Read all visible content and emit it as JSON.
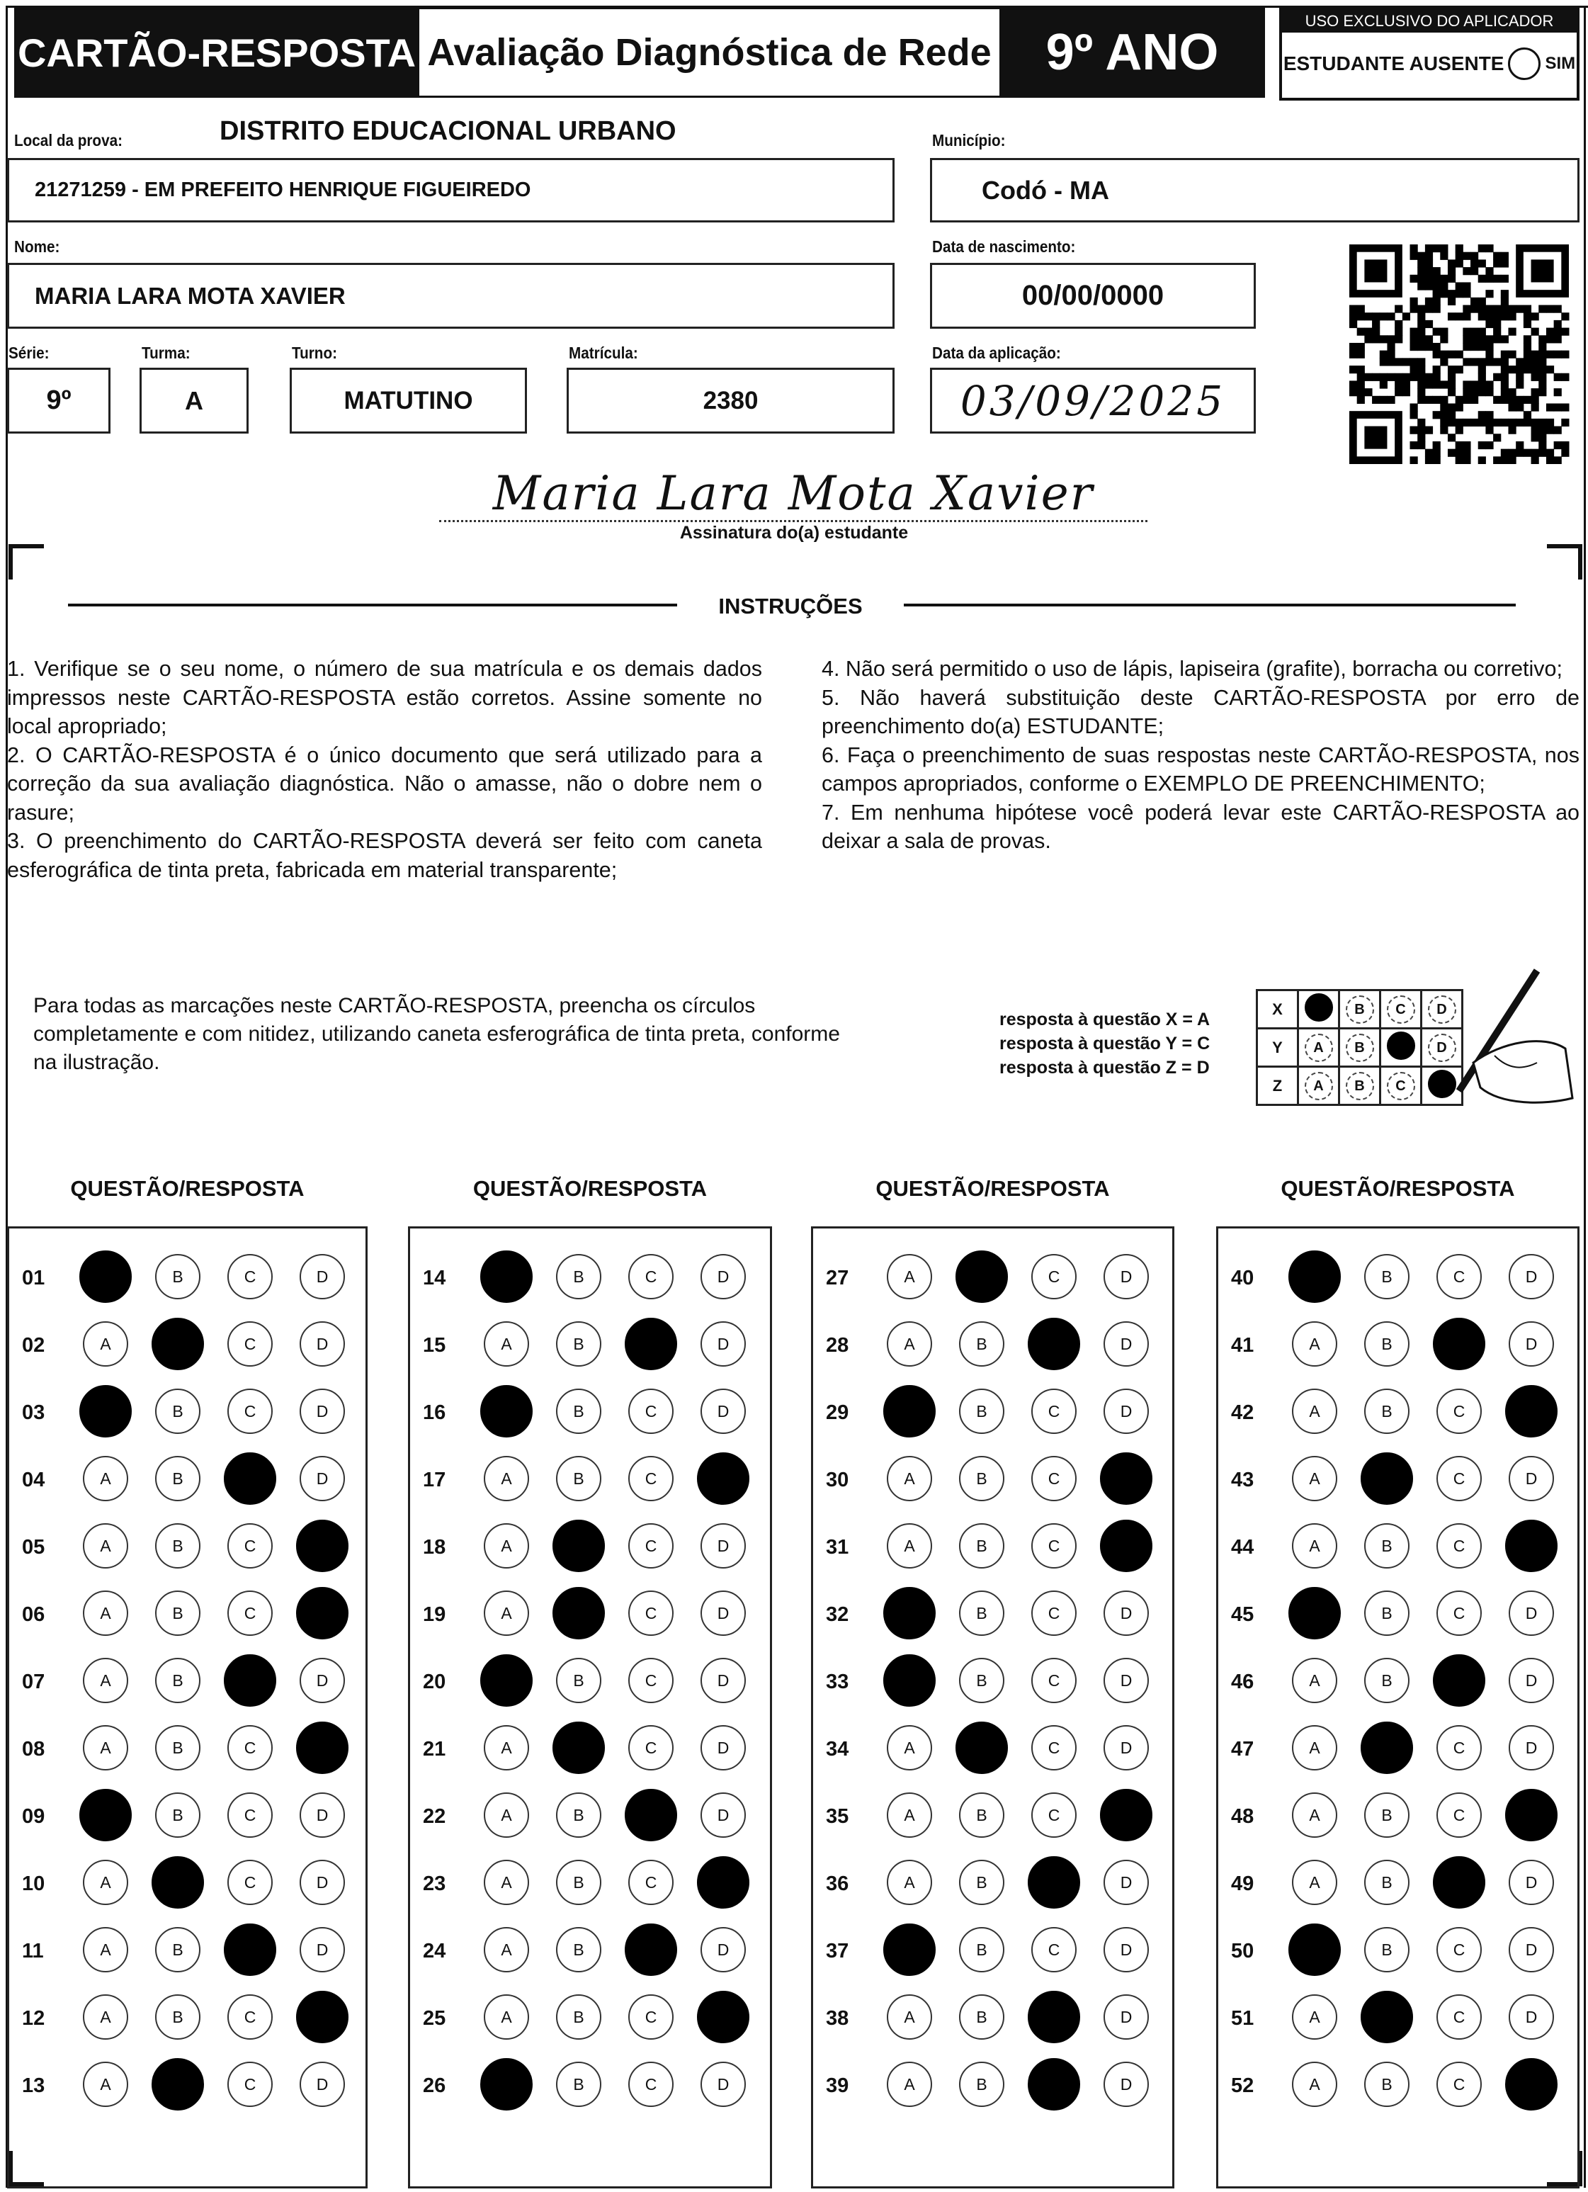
{
  "header": {
    "card_label": "CARTÃO-RESPOSTA",
    "title": "Avaliação Diagnóstica de Rede",
    "grade": "9º ANO",
    "applicator": {
      "title": "USO EXCLUSIVO DO APLICADOR",
      "absent_label": "ESTUDANTE AUSENTE",
      "absent_option": "SIM",
      "absent_checked": false
    }
  },
  "fields": {
    "local_label": "Local da prova:",
    "district": "DISTRITO EDUCACIONAL URBANO",
    "school": "21271259 - EM PREFEITO HENRIQUE FIGUEIREDO",
    "municipio_label": "Município:",
    "municipio": "Codó - MA",
    "nome_label": "Nome:",
    "nome": "MARIA LARA MOTA XAVIER",
    "nascimento_label": "Data de nascimento:",
    "nascimento": "00/00/0000",
    "serie_label": "Série:",
    "serie": "9º",
    "turma_label": "Turma:",
    "turma": "A",
    "turno_label": "Turno:",
    "turno": "MATUTINO",
    "matricula_label": "Matrícula:",
    "matricula": "2380",
    "aplicacao_label": "Data da aplicação:",
    "aplicacao": "03/09/2025",
    "signature": "Maria Lara Mota Xavier",
    "signature_label": "Assinatura do(a) estudante"
  },
  "instructions": {
    "title": "INSTRUÇÕES",
    "left": "1. Verifique se o seu nome, o número de sua matrícula e os demais dados impressos neste CARTÃO-RESPOSTA estão corretos. Assine somente no local apropriado;\n2. O CARTÃO-RESPOSTA é o único documento que será utilizado para a correção da sua avaliação diagnóstica. Não o amasse, não o dobre nem o rasure;\n3. O preenchimento do CARTÃO-RESPOSTA deverá ser feito com caneta esferográfica de tinta preta, fabricada em material transparente;",
    "right": "4. Não será permitido o uso de lápis, lapiseira (grafite), borracha ou corretivo;\n5. Não haverá substituição deste CARTÃO-RESPOSTA por erro de preenchimento do(a) ESTUDANTE;\n6. Faça o preenchimento de suas respostas neste CARTÃO-RESPOSTA, nos campos apropriados, conforme o EXEMPLO DE PREENCHIMENTO;\n7. Em nenhuma hipótese você poderá levar este CARTÃO-RESPOSTA ao deixar a sala de provas.",
    "fill_note": "Para todas as marcações neste CARTÃO-RESPOSTA, preencha os círculos completamente e com nitidez, utilizando caneta esferográfica de tinta preta, conforme na ilustração."
  },
  "example": {
    "lines": [
      "resposta à questão X = A",
      "resposta à questão Y = C",
      "resposta à questão Z = D"
    ],
    "rows": [
      {
        "q": "X",
        "answer": "A"
      },
      {
        "q": "Y",
        "answer": "C"
      },
      {
        "q": "Z",
        "answer": "D"
      }
    ],
    "options": [
      "A",
      "B",
      "C",
      "D"
    ]
  },
  "answers": {
    "column_header": "QUESTÃO/RESPOSTA",
    "options": [
      "A",
      "B",
      "C",
      "D"
    ],
    "columns": [
      [
        [
          "01",
          "A"
        ],
        [
          "02",
          "B"
        ],
        [
          "03",
          "A"
        ],
        [
          "04",
          "C"
        ],
        [
          "05",
          "D"
        ],
        [
          "06",
          "D"
        ],
        [
          "07",
          "C"
        ],
        [
          "08",
          "D"
        ],
        [
          "09",
          "A"
        ],
        [
          "10",
          "B"
        ],
        [
          "11",
          "C"
        ],
        [
          "12",
          "D"
        ],
        [
          "13",
          "B"
        ]
      ],
      [
        [
          "14",
          "A"
        ],
        [
          "15",
          "C"
        ],
        [
          "16",
          "A"
        ],
        [
          "17",
          "D"
        ],
        [
          "18",
          "B"
        ],
        [
          "19",
          "B"
        ],
        [
          "20",
          "A"
        ],
        [
          "21",
          "B"
        ],
        [
          "22",
          "C"
        ],
        [
          "23",
          "D"
        ],
        [
          "24",
          "C"
        ],
        [
          "25",
          "D"
        ],
        [
          "26",
          "A"
        ]
      ],
      [
        [
          "27",
          "B"
        ],
        [
          "28",
          "C"
        ],
        [
          "29",
          "A"
        ],
        [
          "30",
          "D"
        ],
        [
          "31",
          "D"
        ],
        [
          "32",
          "A"
        ],
        [
          "33",
          "A"
        ],
        [
          "34",
          "B"
        ],
        [
          "35",
          "D"
        ],
        [
          "36",
          "C"
        ],
        [
          "37",
          "A"
        ],
        [
          "38",
          "C"
        ],
        [
          "39",
          "C"
        ]
      ],
      [
        [
          "40",
          "A"
        ],
        [
          "41",
          "C"
        ],
        [
          "42",
          "D"
        ],
        [
          "43",
          "B"
        ],
        [
          "44",
          "D"
        ],
        [
          "45",
          "A"
        ],
        [
          "46",
          "C"
        ],
        [
          "47",
          "B"
        ],
        [
          "48",
          "D"
        ],
        [
          "49",
          "C"
        ],
        [
          "50",
          "A"
        ],
        [
          "51",
          "B"
        ],
        [
          "52",
          "D"
        ]
      ]
    ]
  }
}
